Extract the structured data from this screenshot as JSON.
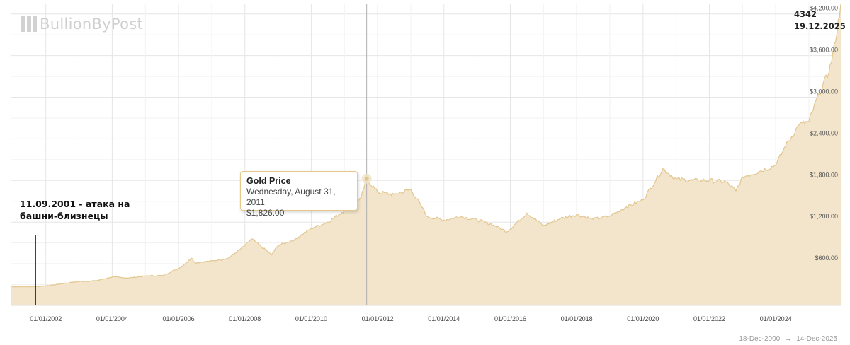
{
  "logo": {
    "text": "BullionByPost"
  },
  "corner": {
    "value": "4342",
    "date": "19.12.2025"
  },
  "annotation": {
    "text": "11.09.2001 -  атака на башни-близнецы",
    "date": 2001.69
  },
  "tooltip": {
    "title": "Gold Price",
    "date": "Wednesday, August 31, 2011",
    "price": "$1,826.00"
  },
  "range": {
    "from": "18-Dec-2000",
    "arrow": "→",
    "to": "14-Dec-2025"
  },
  "colors": {
    "fill": "#f2e5cc",
    "line": "#e3c68f",
    "grid": "#e6e6e6",
    "crosshair": "#b0b0b0"
  },
  "chart_data": {
    "type": "area",
    "title": "",
    "xlabel": "",
    "ylabel": "",
    "x_ticks": [
      "01/01/2002",
      "01/01/2004",
      "01/01/2006",
      "01/01/2008",
      "01/01/2010",
      "01/01/2012",
      "01/01/2014",
      "01/01/2016",
      "01/01/2018",
      "01/01/2020",
      "01/01/2022",
      "01/01/2024"
    ],
    "y_ticks": [
      "$600.00",
      "$1,200.00",
      "$1,800.00",
      "$2,400.00",
      "$3,000.00",
      "$3,600.00",
      "$4,200.00"
    ],
    "y_tick_values": [
      600,
      1200,
      1800,
      2400,
      3000,
      3600,
      4200
    ],
    "ylim": [
      0,
      4350
    ],
    "xlim": [
      "2000-12-18",
      "2025-12-19"
    ],
    "grid": true,
    "highlight": {
      "date": "2011-08-31",
      "value": 1826
    },
    "series": [
      {
        "x": [
          2000.96,
          2001.5,
          2002.0,
          2002.5,
          2003.0,
          2003.5,
          2004.0,
          2004.5,
          2005.0,
          2005.5,
          2006.0,
          2006.4,
          2006.5,
          2007.0,
          2007.5,
          2008.0,
          2008.2,
          2008.8,
          2009.0,
          2009.5,
          2010.0,
          2010.5,
          2011.0,
          2011.5,
          2011.67,
          2012.0,
          2012.5,
          2013.0,
          2013.3,
          2013.5,
          2014.0,
          2014.5,
          2015.0,
          2015.5,
          2015.9,
          2016.5,
          2017.0,
          2017.5,
          2018.0,
          2018.5,
          2019.0,
          2019.5,
          2020.0,
          2020.6,
          2021.0,
          2021.5,
          2022.0,
          2022.5,
          2022.8,
          2023.0,
          2023.5,
          2024.0,
          2024.3,
          2024.7,
          2025.0,
          2025.3,
          2025.6,
          2025.8,
          2025.96
        ],
        "values": [
          272,
          268,
          280,
          315,
          345,
          355,
          410,
          395,
          425,
          430,
          530,
          680,
          615,
          640,
          680,
          860,
          960,
          730,
          860,
          950,
          1110,
          1200,
          1370,
          1550,
          1826,
          1630,
          1600,
          1670,
          1450,
          1280,
          1230,
          1280,
          1230,
          1160,
          1060,
          1330,
          1150,
          1250,
          1310,
          1240,
          1290,
          1420,
          1520,
          1970,
          1820,
          1800,
          1800,
          1780,
          1650,
          1850,
          1930,
          2020,
          2300,
          2600,
          2650,
          3050,
          3350,
          3800,
          4342
        ]
      }
    ]
  }
}
